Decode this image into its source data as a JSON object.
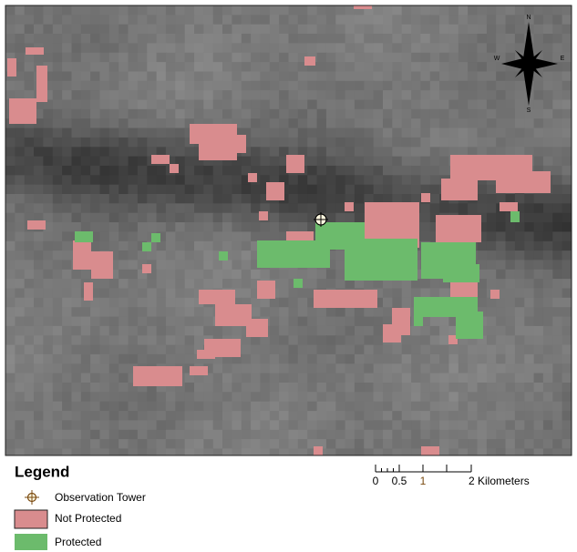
{
  "map": {
    "compass": {
      "north": "N",
      "east": "E",
      "south": "S",
      "west": "W"
    },
    "scale_bar": {
      "labels": [
        "0",
        "0.5",
        "1",
        "2 Kilometers"
      ]
    }
  },
  "legend": {
    "title": "Legend",
    "items": [
      "Observation Tower",
      "Not Protected",
      "Protected"
    ]
  }
}
